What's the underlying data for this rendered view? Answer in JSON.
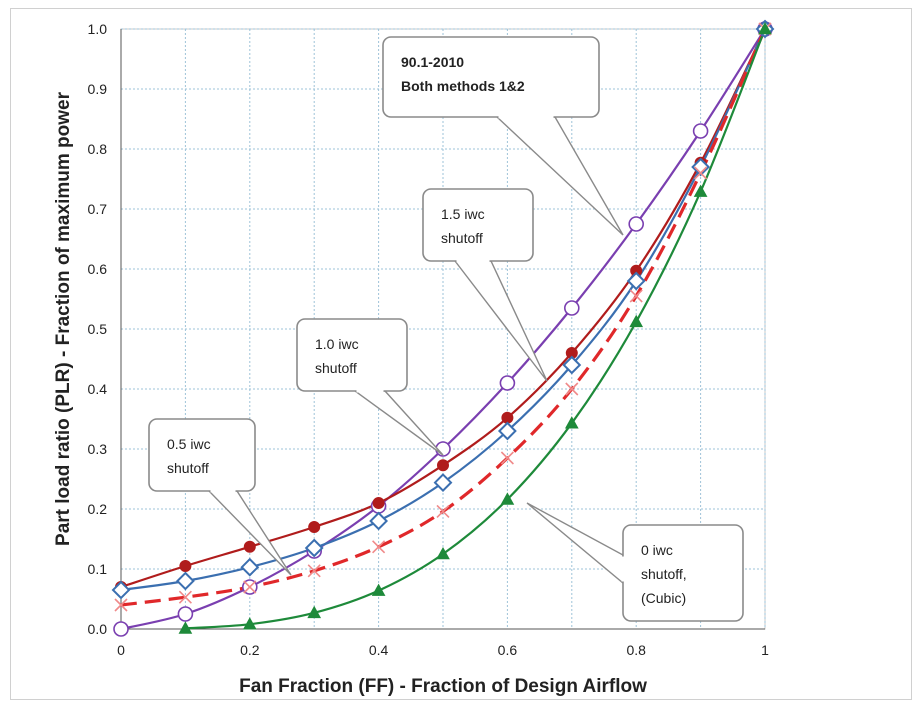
{
  "chart_data": {
    "type": "line",
    "xlabel": "Fan Fraction (FF) - Fraction of Design Airflow",
    "ylabel": "Part load ratio (PLR) - Fraction of maximum power",
    "xlim": [
      0,
      1
    ],
    "ylim": [
      0,
      1
    ],
    "x_ticks": [
      "0",
      "0.2",
      "0.4",
      "0.6",
      "0.8",
      "1"
    ],
    "y_ticks": [
      "0.0",
      "0.1",
      "0.2",
      "0.3",
      "0.4",
      "0.5",
      "0.6",
      "0.7",
      "0.8",
      "0.9",
      "1.0"
    ],
    "grid": true,
    "legend": "none",
    "series": [
      {
        "color": "#7a3fb0",
        "marker": "circle-open",
        "x": [
          0,
          0.1,
          0.2,
          0.3,
          0.4,
          0.5,
          0.6,
          0.7,
          0.8,
          0.9,
          1.0
        ],
        "values": [
          0.0,
          0.025,
          0.07,
          0.13,
          0.205,
          0.3,
          0.41,
          0.535,
          0.675,
          0.83,
          1.0
        ]
      },
      {
        "color": "#b01c1c",
        "marker": "circle-filled",
        "x": [
          0,
          0.1,
          0.2,
          0.3,
          0.4,
          0.5,
          0.6,
          0.7,
          0.8,
          0.9,
          1.0
        ],
        "values": [
          0.07,
          0.105,
          0.137,
          0.17,
          0.21,
          0.273,
          0.352,
          0.46,
          0.597,
          0.777,
          1.0
        ]
      },
      {
        "color": "#3b6fb0",
        "marker": "diamond-open",
        "x": [
          0,
          0.1,
          0.2,
          0.3,
          0.4,
          0.5,
          0.6,
          0.7,
          0.8,
          0.9,
          1.0
        ],
        "values": [
          0.065,
          0.08,
          0.103,
          0.135,
          0.18,
          0.244,
          0.33,
          0.44,
          0.58,
          0.77,
          1.0
        ]
      },
      {
        "color": "#e0282a",
        "marker": "x",
        "dashed": true,
        "x": [
          0,
          0.1,
          0.2,
          0.3,
          0.4,
          0.5,
          0.6,
          0.7,
          0.8,
          0.9,
          1.0
        ],
        "values": [
          0.04,
          0.053,
          0.07,
          0.097,
          0.137,
          0.196,
          0.285,
          0.4,
          0.555,
          0.76,
          1.0
        ]
      },
      {
        "color": "#1e8a3a",
        "marker": "triangle",
        "x": [
          0.1,
          0.2,
          0.3,
          0.4,
          0.5,
          0.6,
          0.7,
          0.8,
          0.9,
          1.0
        ],
        "values": [
          0.001,
          0.008,
          0.027,
          0.064,
          0.125,
          0.216,
          0.343,
          0.512,
          0.729,
          1.0
        ]
      }
    ],
    "annotations": [
      {
        "id": "a2010",
        "lines": [
          "90.1-2010",
          "Both methods 1&2"
        ],
        "bold": true
      },
      {
        "id": "a15",
        "lines": [
          "1.5 iwc",
          "shutoff"
        ],
        "bold": false
      },
      {
        "id": "a10",
        "lines": [
          "1.0 iwc",
          "shutoff"
        ],
        "bold": false
      },
      {
        "id": "a05",
        "lines": [
          "0.5 iwc",
          "shutoff"
        ],
        "bold": false
      },
      {
        "id": "a00",
        "lines": [
          "0 iwc",
          "shutoff,",
          "(Cubic)"
        ],
        "bold": false
      }
    ]
  }
}
